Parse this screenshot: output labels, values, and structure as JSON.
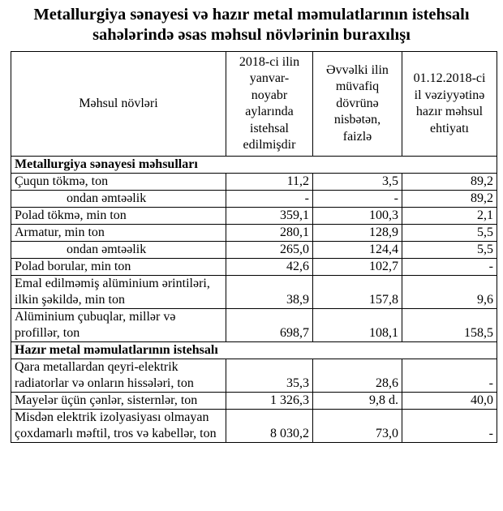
{
  "title_line1": "Metallurgiya sənayesi və hazır metal məmulatlarının istehsalı",
  "title_line2": "sahələrində əsas məhsul növlərinin buraxılışı",
  "headers": [
    "Məhsul növləri",
    "2018-ci ilin yanvar-noyabr aylarında istehsal edilmişdir",
    "Əvvəlki ilin müvafiq dövrünə nisbətən, faizlə",
    "01.12.2018-ci il vəziyyətinə hazır məhsul ehtiyatı"
  ],
  "header_lines": {
    "c1": [
      "2018-ci ilin",
      "yanvar-",
      "noyabr",
      "aylarında",
      "istehsal",
      "edilmişdir"
    ],
    "c2": [
      "Əvvəlki ilin",
      "müvafiq",
      "dövrünə",
      "nisbətən,",
      "faizlə"
    ],
    "c3": [
      "01.12.2018-ci",
      "il vəziyyətinə",
      "hazır məhsul",
      "ehtiyatı"
    ]
  },
  "sections": [
    {
      "title": "Metallurgiya sənayesi məhsulları",
      "rows": [
        {
          "name": "Çuqun tökmə, ton",
          "v1": "11,2",
          "v2": "3,5",
          "v3": "89,2"
        },
        {
          "name": "ondan əmtəəlik",
          "v1": "-",
          "v2": "-",
          "v3": "89,2",
          "sub": true
        },
        {
          "name": "Polad tökmə, min ton",
          "v1": "359,1",
          "v2": "100,3",
          "v3": "2,1"
        },
        {
          "name": "Armatur, min ton",
          "v1": "280,1",
          "v2": "128,9",
          "v3": "5,5"
        },
        {
          "name": "ondan əmtəəlik",
          "v1": "265,0",
          "v2": "124,4",
          "v3": "5,5",
          "sub": true
        },
        {
          "name": "Polad borular,  min ton",
          "v1": "42,6",
          "v2": "102,7",
          "v3": "-"
        },
        {
          "name": "Emal edilməmiş alüminium ərintiləri, ilkin şəkildə, min ton",
          "v1": "38,9",
          "v2": "157,8",
          "v3": "9,6"
        },
        {
          "name": "Alüminium çubuqlar, millər və profillər, ton",
          "v1": "698,7",
          "v2": "108,1",
          "v3": "158,5"
        }
      ]
    },
    {
      "title": "Hazır metal məmulatlarının istehsalı",
      "rows": [
        {
          "name": "Qara metallardan qeyri-elektrik radiatorlar və onların hissələri, ton",
          "v1": "35,3",
          "v2": "28,6",
          "v3": "-"
        },
        {
          "name": "Mayelər üçün çənlər, sisternlər, ton",
          "v1": "1 326,3",
          "v2": "9,8 d.",
          "v3": "40,0"
        },
        {
          "name": "Misdən elektrik izolyasiyası olmayan çoxdamarlı məftil, tros və kabellər, ton",
          "v1": "8 030,2",
          "v2": "73,0",
          "v3": "-"
        }
      ]
    }
  ]
}
